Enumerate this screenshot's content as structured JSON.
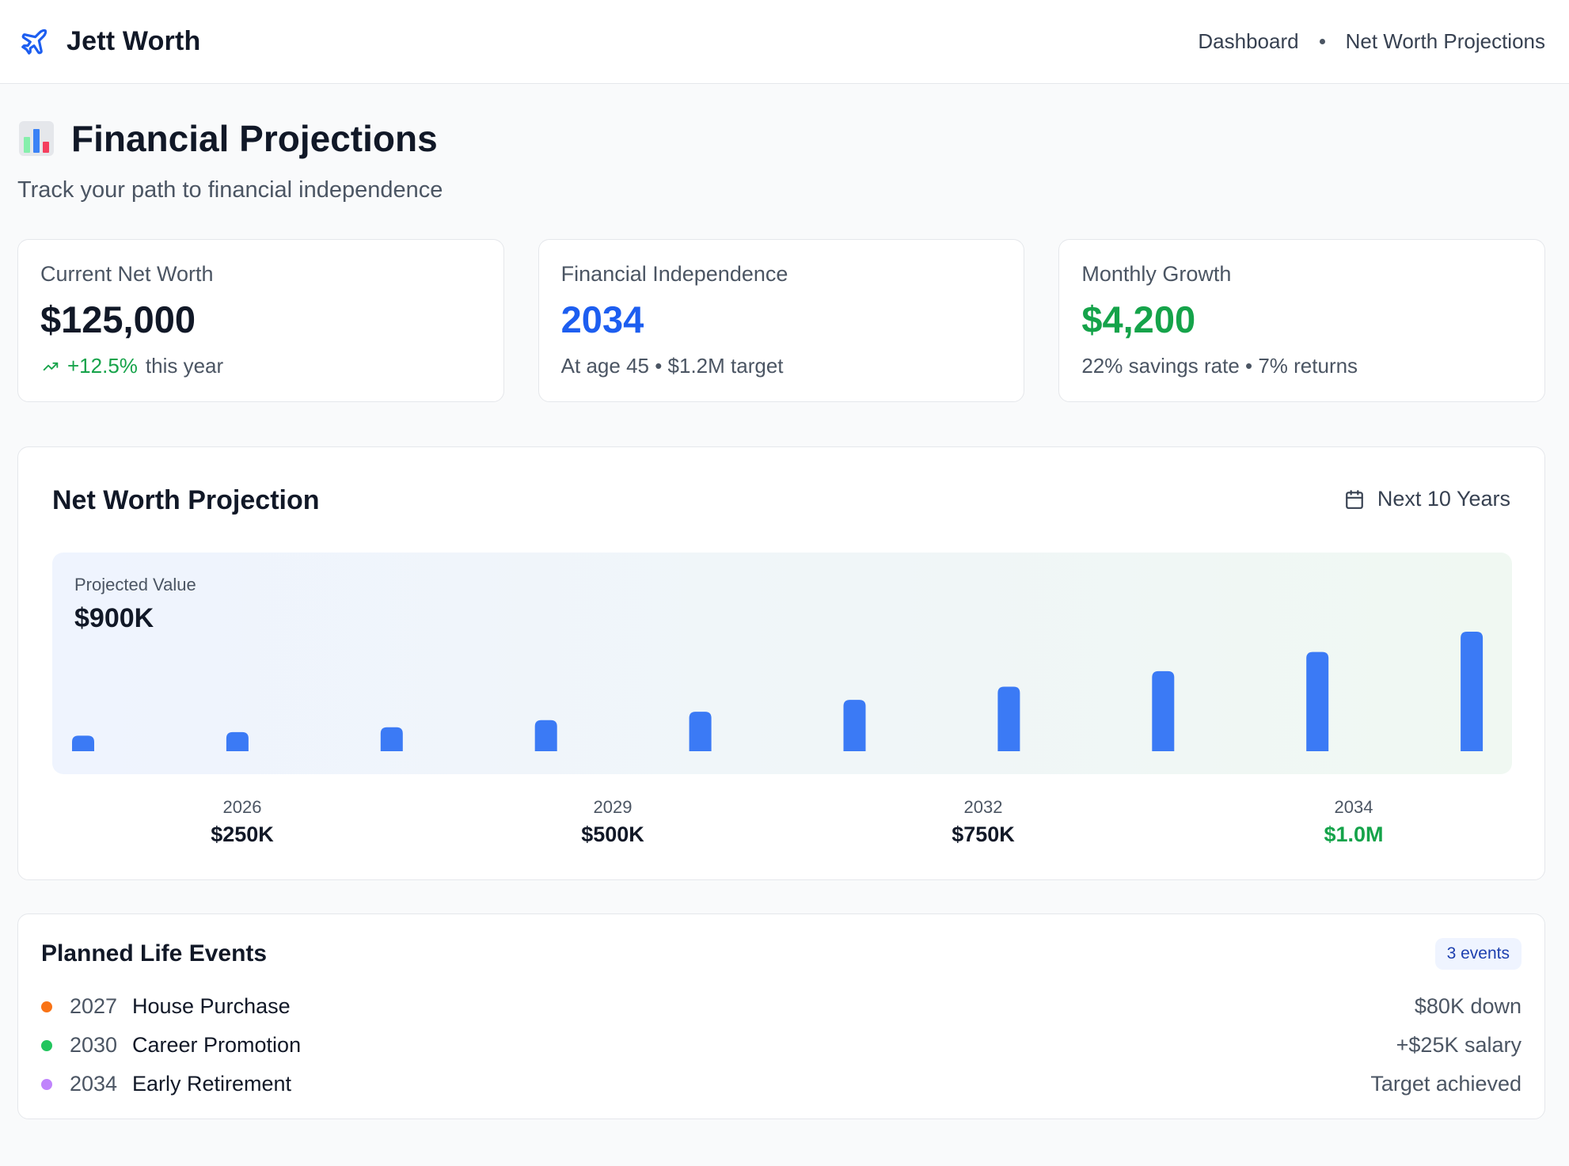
{
  "brand": {
    "name": "Jett Worth",
    "icon": "plane-icon"
  },
  "breadcrumb": {
    "items": [
      "Dashboard",
      "Net Worth Projections"
    ]
  },
  "page": {
    "title": "Financial Projections",
    "title_icon": "bar-chart-icon",
    "subtitle": "Track your path to financial independence"
  },
  "cards": [
    {
      "label": "Current Net Worth",
      "value": "$125,000",
      "trend": "+12.5%",
      "note": "this year",
      "trend_icon": "trending-up-icon"
    },
    {
      "label": "Financial Independence",
      "value": "2034",
      "note": "At age 45 • $1.2M target",
      "accent": "#1d5ef0"
    },
    {
      "label": "Monthly Growth",
      "value": "$4,200",
      "note": "22% savings rate • 7% returns",
      "accent": "#15a34a"
    }
  ],
  "chart": {
    "title": "Net Worth Projection",
    "range_label": "Next 10 Years",
    "range_icon": "calendar-icon",
    "overlay_label": "Projected Value",
    "overlay_value": "$900K",
    "bar_color": "#3b7af5"
  },
  "chart_data": {
    "type": "bar",
    "values": [
      0.13,
      0.16,
      0.2,
      0.26,
      0.33,
      0.43,
      0.54,
      0.67,
      0.83,
      1.0
    ],
    "ylim": [
      0,
      1
    ]
  },
  "milestones": [
    {
      "year": "2026",
      "value": "$250K"
    },
    {
      "year": "2029",
      "value": "$500K"
    },
    {
      "year": "2032",
      "value": "$750K"
    },
    {
      "year": "2034",
      "value": "$1.0M",
      "highlight": "#15a34a"
    }
  ],
  "events": {
    "title": "Planned Life Events",
    "badge": "3 events",
    "items": [
      {
        "year": "2027",
        "name": "House Purchase",
        "detail": "$80K down",
        "color": "#f97316"
      },
      {
        "year": "2030",
        "name": "Career Promotion",
        "detail": "+$25K salary",
        "color": "#22c55e"
      },
      {
        "year": "2034",
        "name": "Early Retirement",
        "detail": "Target achieved",
        "color": "#c084fc"
      }
    ]
  }
}
